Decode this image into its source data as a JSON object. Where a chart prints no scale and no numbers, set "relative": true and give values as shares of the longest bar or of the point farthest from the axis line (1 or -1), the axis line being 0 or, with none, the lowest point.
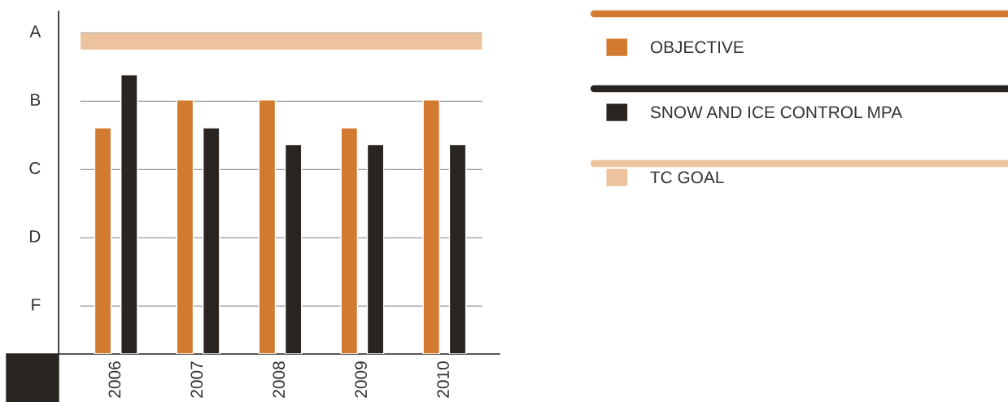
{
  "chart_data": {
    "type": "bar",
    "relative": true,
    "categories": [
      "2006",
      "2007",
      "2008",
      "2009",
      "2010"
    ],
    "series": [
      {
        "name": "OBJECTIVE",
        "color": "#d27a30",
        "values": [
          0.81,
          0.91,
          0.91,
          0.81,
          0.91
        ]
      },
      {
        "name": "SNOW AND ICE CONTROL MPA",
        "color": "#29241f",
        "values": [
          1,
          0.81,
          0.75,
          0.75,
          0.75
        ]
      }
    ],
    "bands": [
      {
        "axis": "y",
        "from": 1.09,
        "to": 1.15,
        "label": "TC GOAL",
        "color": "#ecc39c"
      }
    ],
    "annotations": [
      "A",
      "B",
      "C",
      "D",
      "F"
    ],
    "grid": "y",
    "legend": "right"
  }
}
